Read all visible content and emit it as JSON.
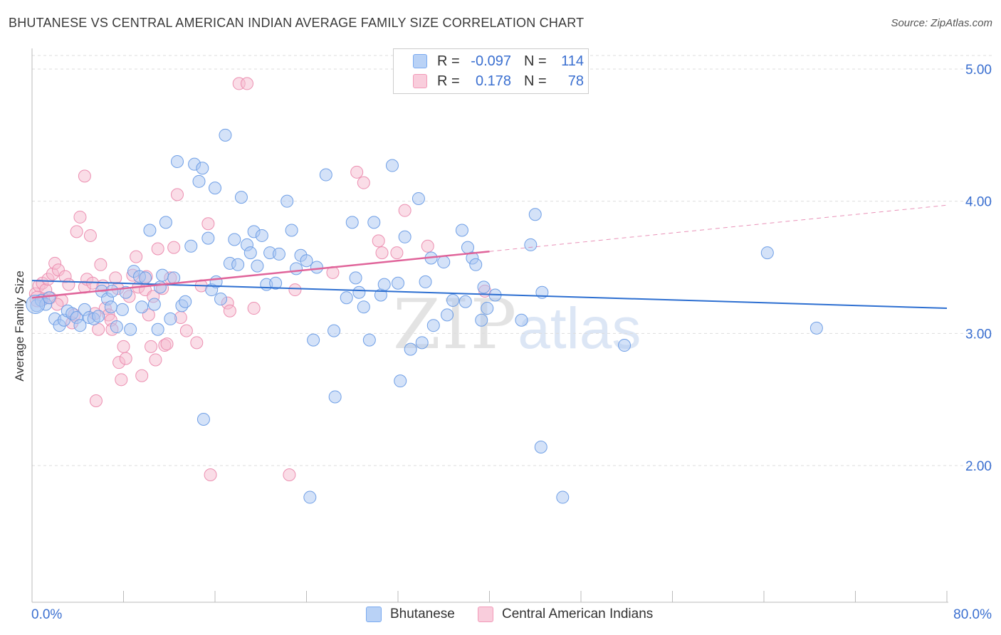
{
  "header": {
    "title": "BHUTANESE VS CENTRAL AMERICAN INDIAN AVERAGE FAMILY SIZE CORRELATION CHART",
    "source": "Source: ZipAtlas.com"
  },
  "watermark": {
    "zip": "ZIP",
    "atlas": "atlas"
  },
  "legend": {
    "rows": [
      {
        "r_label": "R =",
        "r_value": "-0.097",
        "n_label": "N =",
        "n_value": "114",
        "color": "#7aaaf0"
      },
      {
        "r_label": "R =",
        "r_value": "0.178",
        "n_label": "N =",
        "n_value": "78",
        "color": "#f29ab8"
      }
    ]
  },
  "bottom_legend": {
    "series1": "Bhutanese",
    "series2": "Central American Indians"
  },
  "chart_data": {
    "type": "scatter",
    "title": "BHUTANESE VS CENTRAL AMERICAN INDIAN AVERAGE FAMILY SIZE CORRELATION CHART",
    "xlabel": "",
    "ylabel": "Average Family Size",
    "xlim": [
      0,
      80
    ],
    "ylim": [
      1.0,
      5.1
    ],
    "x_tick_labels": [
      "0.0%",
      "80.0%"
    ],
    "y_ticks": [
      2.0,
      3.0,
      4.0,
      5.0
    ],
    "y_tick_labels": [
      "2.00",
      "3.00",
      "4.00",
      "5.00"
    ],
    "grid": true,
    "colors": {
      "series1_fill": "#a9c6f2",
      "series1_stroke": "#6f9fe6",
      "series1_line": "#2d6fd1",
      "series2_fill": "#f6bcd0",
      "series2_stroke": "#ec8fb1",
      "series2_line": "#e0649a"
    },
    "series": [
      {
        "name": "Bhutanese",
        "trend": {
          "x": [
            0,
            80
          ],
          "y": [
            3.4,
            3.19
          ]
        },
        "points": [
          [
            0.4,
            3.21
          ],
          [
            0.8,
            3.25
          ],
          [
            1.2,
            3.22
          ],
          [
            1.5,
            3.27
          ],
          [
            2.0,
            3.11
          ],
          [
            2.4,
            3.06
          ],
          [
            2.8,
            3.1
          ],
          [
            3.1,
            3.17
          ],
          [
            3.5,
            3.15
          ],
          [
            3.9,
            3.12
          ],
          [
            4.2,
            3.06
          ],
          [
            4.6,
            3.18
          ],
          [
            5.0,
            3.12
          ],
          [
            5.4,
            3.11
          ],
          [
            5.8,
            3.13
          ],
          [
            6.1,
            3.32
          ],
          [
            6.6,
            3.26
          ],
          [
            7.0,
            3.32
          ],
          [
            7.4,
            3.05
          ],
          [
            7.9,
            3.18
          ],
          [
            8.2,
            3.31
          ],
          [
            8.6,
            3.03
          ],
          [
            8.9,
            3.47
          ],
          [
            9.4,
            3.43
          ],
          [
            9.6,
            3.2
          ],
          [
            9.9,
            3.42
          ],
          [
            10.3,
            3.78
          ],
          [
            10.7,
            3.22
          ],
          [
            11.0,
            3.03
          ],
          [
            11.4,
            3.44
          ],
          [
            11.7,
            3.84
          ],
          [
            12.1,
            3.11
          ],
          [
            12.4,
            3.42
          ],
          [
            12.7,
            4.3
          ],
          [
            13.1,
            3.21
          ],
          [
            13.4,
            3.24
          ],
          [
            13.9,
            3.66
          ],
          [
            14.2,
            4.28
          ],
          [
            14.6,
            4.15
          ],
          [
            14.9,
            4.25
          ],
          [
            15.4,
            3.72
          ],
          [
            15.7,
            3.33
          ],
          [
            16.1,
            3.39
          ],
          [
            16.5,
            3.26
          ],
          [
            16.9,
            4.5
          ],
          [
            17.3,
            3.53
          ],
          [
            17.7,
            3.71
          ],
          [
            18.0,
            3.52
          ],
          [
            18.3,
            4.03
          ],
          [
            18.8,
            3.67
          ],
          [
            19.1,
            3.61
          ],
          [
            19.4,
            3.77
          ],
          [
            19.7,
            3.51
          ],
          [
            20.1,
            3.74
          ],
          [
            20.5,
            3.37
          ],
          [
            20.8,
            3.61
          ],
          [
            21.3,
            3.38
          ],
          [
            21.6,
            3.6
          ],
          [
            22.3,
            4.0
          ],
          [
            22.7,
            3.78
          ],
          [
            23.1,
            3.49
          ],
          [
            23.5,
            3.59
          ],
          [
            24.0,
            3.55
          ],
          [
            24.6,
            2.95
          ],
          [
            24.9,
            3.5
          ],
          [
            25.7,
            4.2
          ],
          [
            26.4,
            3.02
          ],
          [
            26.5,
            2.52
          ],
          [
            27.5,
            3.27
          ],
          [
            28.0,
            3.84
          ],
          [
            28.3,
            3.42
          ],
          [
            28.6,
            3.31
          ],
          [
            29.5,
            2.95
          ],
          [
            29.9,
            3.84
          ],
          [
            30.5,
            3.29
          ],
          [
            30.8,
            3.37
          ],
          [
            31.5,
            4.27
          ],
          [
            32.0,
            3.38
          ],
          [
            32.2,
            2.64
          ],
          [
            32.6,
            3.73
          ],
          [
            33.1,
            2.88
          ],
          [
            33.8,
            4.02
          ],
          [
            34.1,
            2.93
          ],
          [
            34.4,
            3.39
          ],
          [
            34.9,
            3.57
          ],
          [
            35.1,
            3.06
          ],
          [
            36.0,
            3.54
          ],
          [
            36.3,
            3.14
          ],
          [
            37.6,
            3.78
          ],
          [
            37.9,
            3.24
          ],
          [
            38.1,
            3.65
          ],
          [
            38.5,
            3.57
          ],
          [
            38.8,
            3.52
          ],
          [
            39.3,
            3.1
          ],
          [
            39.5,
            3.35
          ],
          [
            39.8,
            3.19
          ],
          [
            40.5,
            3.29
          ],
          [
            42.8,
            3.1
          ],
          [
            43.6,
            3.67
          ],
          [
            44.5,
            2.14
          ],
          [
            44.6,
            3.31
          ],
          [
            46.4,
            1.76
          ],
          [
            51.8,
            2.91
          ],
          [
            64.3,
            3.61
          ],
          [
            68.6,
            3.04
          ],
          [
            44.0,
            3.9
          ],
          [
            15.0,
            2.35
          ],
          [
            16.0,
            4.1
          ],
          [
            24.3,
            1.76
          ],
          [
            29.0,
            3.2
          ],
          [
            36.8,
            3.25
          ],
          [
            11.2,
            3.35
          ],
          [
            6.9,
            3.2
          ]
        ]
      },
      {
        "name": "Central American Indians",
        "trend": {
          "x": [
            0,
            40
          ],
          "y": [
            3.27,
            3.62
          ],
          "dashed_to": [
            80,
            3.97
          ]
        },
        "points": [
          [
            0.3,
            3.3
          ],
          [
            0.6,
            3.36
          ],
          [
            0.9,
            3.38
          ],
          [
            1.2,
            3.33
          ],
          [
            1.4,
            3.41
          ],
          [
            1.6,
            3.27
          ],
          [
            1.8,
            3.45
          ],
          [
            2.0,
            3.53
          ],
          [
            2.3,
            3.48
          ],
          [
            2.6,
            3.25
          ],
          [
            2.9,
            3.43
          ],
          [
            3.2,
            3.37
          ],
          [
            3.5,
            3.08
          ],
          [
            3.7,
            3.14
          ],
          [
            3.9,
            3.77
          ],
          [
            4.2,
            3.88
          ],
          [
            4.6,
            3.35
          ],
          [
            4.6,
            4.19
          ],
          [
            4.8,
            3.41
          ],
          [
            5.1,
            3.74
          ],
          [
            5.3,
            3.38
          ],
          [
            5.5,
            3.15
          ],
          [
            5.6,
            2.49
          ],
          [
            5.8,
            3.03
          ],
          [
            6.0,
            3.52
          ],
          [
            6.2,
            3.36
          ],
          [
            6.4,
            3.19
          ],
          [
            6.7,
            3.14
          ],
          [
            6.9,
            3.1
          ],
          [
            7.0,
            3.03
          ],
          [
            7.3,
            3.42
          ],
          [
            7.5,
            3.34
          ],
          [
            7.6,
            2.78
          ],
          [
            7.8,
            2.65
          ],
          [
            8.0,
            2.9
          ],
          [
            8.2,
            2.81
          ],
          [
            8.5,
            3.28
          ],
          [
            8.8,
            3.44
          ],
          [
            9.1,
            3.58
          ],
          [
            9.3,
            3.35
          ],
          [
            9.6,
            2.68
          ],
          [
            9.9,
            3.33
          ],
          [
            10.0,
            3.43
          ],
          [
            10.2,
            3.14
          ],
          [
            10.4,
            2.9
          ],
          [
            10.6,
            3.28
          ],
          [
            10.8,
            2.8
          ],
          [
            11.0,
            3.64
          ],
          [
            11.4,
            3.34
          ],
          [
            11.6,
            2.91
          ],
          [
            11.8,
            2.92
          ],
          [
            12.1,
            3.42
          ],
          [
            12.4,
            3.65
          ],
          [
            12.7,
            4.05
          ],
          [
            13.0,
            3.12
          ],
          [
            13.5,
            3.02
          ],
          [
            14.4,
            2.93
          ],
          [
            14.8,
            3.36
          ],
          [
            15.4,
            3.83
          ],
          [
            15.6,
            1.93
          ],
          [
            17.1,
            3.23
          ],
          [
            17.3,
            3.17
          ],
          [
            18.1,
            4.89
          ],
          [
            18.8,
            4.89
          ],
          [
            19.4,
            3.19
          ],
          [
            22.5,
            1.93
          ],
          [
            23.0,
            3.33
          ],
          [
            26.3,
            3.46
          ],
          [
            28.4,
            4.22
          ],
          [
            29.0,
            4.14
          ],
          [
            30.3,
            3.7
          ],
          [
            30.6,
            3.61
          ],
          [
            31.9,
            3.61
          ],
          [
            32.6,
            3.93
          ],
          [
            34.6,
            3.66
          ],
          [
            39.6,
            3.32
          ],
          [
            1.0,
            3.26
          ],
          [
            2.2,
            3.22
          ]
        ]
      }
    ]
  }
}
